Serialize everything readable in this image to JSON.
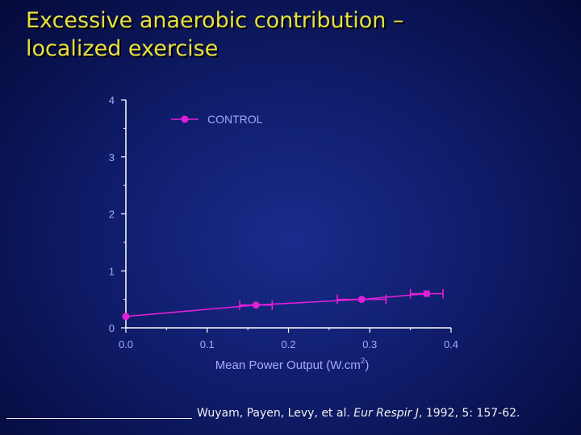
{
  "slide": {
    "title_line1": "Excessive anaerobic contribution –",
    "title_line2": "localized exercise",
    "citation": {
      "authors": "Wuyam, Payen, Levy, et al.",
      "journal": "Eur Respir J",
      "details": ", 1992, 5: 157-62."
    }
  },
  "colors": {
    "series": "#e020d8",
    "axis": "#ffffff",
    "axis_label": "#a8a8ff",
    "title": "#e8e040"
  },
  "chart_data": {
    "type": "line",
    "xlabel": "Mean Power Output (W.cm",
    "xlabel_sup": "2",
    "xlabel_end": ")",
    "ylabel": "",
    "xlim": [
      0.0,
      0.4
    ],
    "ylim": [
      0,
      4
    ],
    "x_ticks": [
      "0.0",
      "0.1",
      "0.2",
      "0.3",
      "0.4"
    ],
    "y_ticks": [
      "0",
      "1",
      "2",
      "3",
      "4"
    ],
    "legend_position": "top-left",
    "series": [
      {
        "name": "CONTROL",
        "x": [
          0.0,
          0.16,
          0.29,
          0.37
        ],
        "y": [
          0.2,
          0.4,
          0.5,
          0.6
        ],
        "x_err": [
          0.0,
          0.02,
          0.03,
          0.02
        ],
        "markers": [
          "circle",
          "circle",
          "circle",
          "square"
        ]
      }
    ]
  }
}
